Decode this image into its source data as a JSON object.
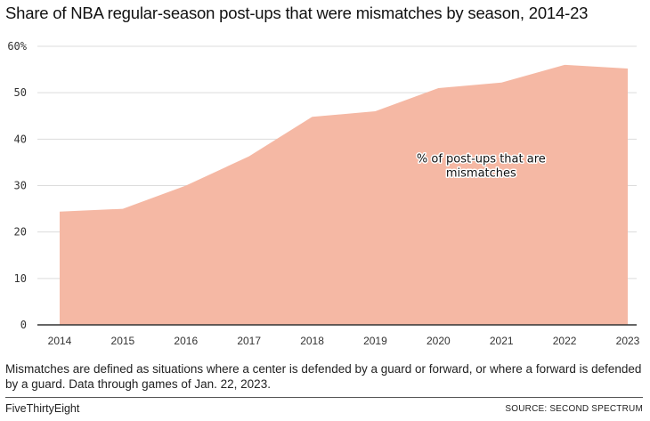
{
  "header": {
    "title": "Share of NBA regular-season post-ups that were mismatches by season, 2014-23"
  },
  "chart_data": {
    "type": "area",
    "title": "Share of NBA regular-season post-ups that were mismatches by season, 2014-23",
    "xlabel": "",
    "ylabel": "",
    "categories": [
      "2014",
      "2015",
      "2016",
      "2017",
      "2018",
      "2019",
      "2020",
      "2021",
      "2022",
      "2023"
    ],
    "series": [
      {
        "name": "% of post-ups that are mismatches",
        "values": [
          24.4,
          25.0,
          30.0,
          36.3,
          44.8,
          46.0,
          51.0,
          52.2,
          56.0,
          55.2
        ],
        "color": "#f5b8a4"
      }
    ],
    "ylim": [
      0,
      60
    ],
    "yticks": [
      0,
      10,
      20,
      30,
      40,
      50,
      60
    ],
    "ytick_labels": [
      "0",
      "10",
      "20",
      "30",
      "40",
      "50",
      "60%"
    ],
    "grid": true,
    "annotation": {
      "lines": [
        "% of post-ups that are",
        "mismatches"
      ],
      "near_category": "2020",
      "near_value": 35
    }
  },
  "footer": {
    "note": "Mismatches are defined as situations where a center is defended by a guard or forward, or where a forward is defended by a guard. Data through games of Jan. 22, 2023.",
    "brand": "FiveThirtyEight",
    "source": "SOURCE: SECOND SPECTRUM"
  }
}
